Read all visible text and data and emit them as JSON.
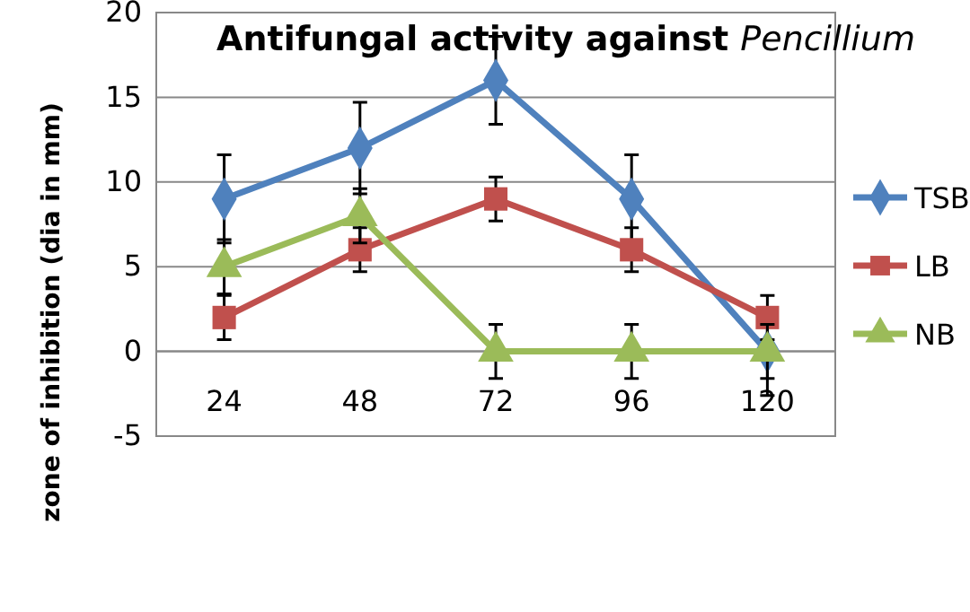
{
  "chart_data": {
    "type": "line",
    "title": "Antifungal activity against Pencillium",
    "ylabel": "zone of inhibition  (dia in mm)",
    "categories": [
      "24",
      "48",
      "72",
      "96",
      "120"
    ],
    "ylim": [
      -5,
      20
    ],
    "yticks": [
      -5,
      0,
      5,
      10,
      15,
      20
    ],
    "grid": "y",
    "legend": "right",
    "series": [
      {
        "name": "TSB",
        "color": "#4f81bd",
        "marker": "diamond",
        "values": [
          9,
          12,
          16,
          9,
          0
        ],
        "errors": [
          2.6,
          2.7,
          2.6,
          2.6,
          2.6
        ]
      },
      {
        "name": "LB",
        "color": "#c0504d",
        "marker": "square",
        "values": [
          2,
          6,
          9,
          6,
          2
        ],
        "errors": [
          1.3,
          1.3,
          1.3,
          1.3,
          1.3
        ]
      },
      {
        "name": "NB",
        "color": "#9bbb59",
        "marker": "triangle",
        "values": [
          5,
          8,
          0,
          0,
          0
        ],
        "errors": [
          1.6,
          1.6,
          1.6,
          1.6,
          1.6
        ]
      }
    ]
  }
}
